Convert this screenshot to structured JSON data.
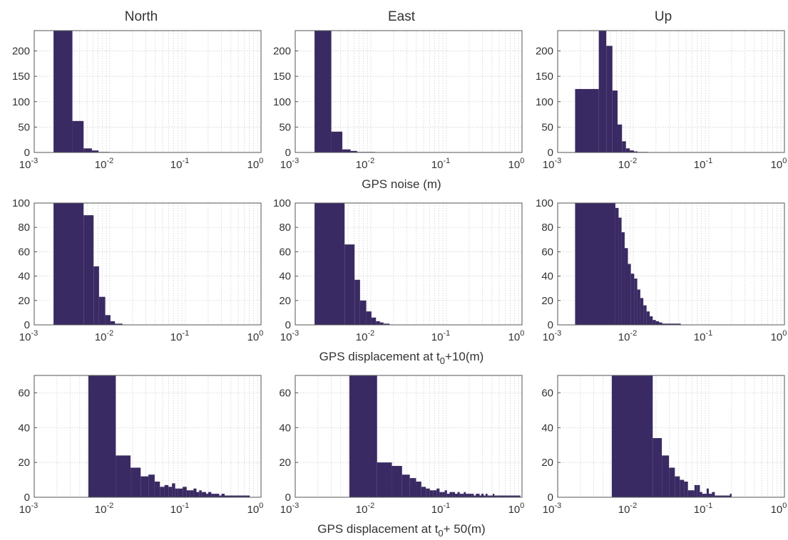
{
  "figure": {
    "column_titles": [
      "North",
      "East",
      "Up"
    ],
    "row_xlabels": [
      {
        "pre": "GPS noise (m)",
        "sub": "",
        "post": ""
      },
      {
        "pre": "GPS displacement at t",
        "sub": "0",
        "post": "+10(m)"
      },
      {
        "pre": "GPS displacement at t",
        "sub": "0",
        "post": "+ 50(m)"
      }
    ],
    "colors": {
      "bar": "#3a2a63",
      "frame": "#555555",
      "grid": "#c8c8c8"
    }
  },
  "chart_data": [
    {
      "type": "histogram",
      "row": 0,
      "col": 0,
      "title": "North",
      "xlabel": "",
      "ylabel": "",
      "xscale": "log",
      "xlim": [
        0.001,
        1
      ],
      "ylim": [
        0,
        240
      ],
      "yticks": [
        0,
        50,
        100,
        150,
        200
      ],
      "xtick_labels": [
        [
          "10",
          "-3"
        ],
        [
          "10",
          "-2"
        ],
        [
          "10",
          "-1"
        ],
        [
          "10",
          "0"
        ]
      ],
      "grid": true,
      "bin_edges": [
        0.0018,
        0.0032,
        0.0045,
        0.0058,
        0.0071,
        0.0085,
        0.0098
      ],
      "counts": [
        240,
        62,
        8,
        4,
        1,
        1
      ]
    },
    {
      "type": "histogram",
      "row": 0,
      "col": 1,
      "title": "East",
      "xlabel": "",
      "ylabel": "",
      "xscale": "log",
      "xlim": [
        0.001,
        1
      ],
      "ylim": [
        0,
        240
      ],
      "yticks": [
        0,
        50,
        100,
        150,
        200
      ],
      "xtick_labels": [
        [
          "10",
          "-3"
        ],
        [
          "10",
          "-2"
        ],
        [
          "10",
          "-1"
        ],
        [
          "10",
          "0"
        ]
      ],
      "grid": true,
      "bin_edges": [
        0.0018,
        0.003,
        0.0042,
        0.0054,
        0.0066,
        0.0078,
        0.009,
        0.0102,
        0.0114
      ],
      "counts": [
        240,
        41,
        6,
        3,
        1,
        1,
        1,
        1
      ]
    },
    {
      "type": "histogram",
      "row": 0,
      "col": 2,
      "title": "Up",
      "xlabel": "",
      "ylabel": "",
      "xscale": "log",
      "xlim": [
        0.001,
        1
      ],
      "ylim": [
        0,
        240
      ],
      "yticks": [
        0,
        50,
        100,
        150,
        200
      ],
      "xtick_labels": [
        [
          "10",
          "-3"
        ],
        [
          "10",
          "-2"
        ],
        [
          "10",
          "-1"
        ],
        [
          "10",
          "0"
        ]
      ],
      "grid": true,
      "bin_edges": [
        0.0017,
        0.0026,
        0.0035,
        0.0044,
        0.0053,
        0.0062,
        0.0071,
        0.008,
        0.009,
        0.0102,
        0.0114,
        0.0128,
        0.0142,
        0.0156
      ],
      "counts": [
        125,
        125,
        240,
        210,
        122,
        55,
        22,
        8,
        4,
        2,
        1,
        1,
        1
      ]
    },
    {
      "type": "histogram",
      "row": 1,
      "col": 0,
      "title": "",
      "xlabel": "",
      "ylabel": "",
      "xscale": "log",
      "xlim": [
        0.001,
        1
      ],
      "ylim": [
        0,
        100
      ],
      "yticks": [
        0,
        20,
        40,
        60,
        80,
        100
      ],
      "xtick_labels": [
        [
          "10",
          "-3"
        ],
        [
          "10",
          "-2"
        ],
        [
          "10",
          "-1"
        ],
        [
          "10",
          "0"
        ]
      ],
      "grid": true,
      "bin_edges": [
        0.0018,
        0.0045,
        0.0061,
        0.0072,
        0.0087,
        0.0102,
        0.0117,
        0.0132,
        0.0147
      ],
      "counts": [
        100,
        90,
        48,
        23,
        8,
        3,
        1,
        1
      ]
    },
    {
      "type": "histogram",
      "row": 1,
      "col": 1,
      "title": "",
      "xlabel": "",
      "ylabel": "",
      "xscale": "log",
      "xlim": [
        0.001,
        1
      ],
      "ylim": [
        0,
        100
      ],
      "yticks": [
        0,
        20,
        40,
        60,
        80,
        100
      ],
      "xtick_labels": [
        [
          "10",
          "-3"
        ],
        [
          "10",
          "-2"
        ],
        [
          "10",
          "-1"
        ],
        [
          "10",
          "0"
        ]
      ],
      "grid": true,
      "bin_edges": [
        0.0018,
        0.0045,
        0.0061,
        0.0072,
        0.0087,
        0.0102,
        0.0117,
        0.0132,
        0.0147,
        0.0162,
        0.0177
      ],
      "counts": [
        100,
        66,
        37,
        20,
        11,
        6,
        3,
        2,
        1,
        1
      ]
    },
    {
      "type": "histogram",
      "row": 1,
      "col": 2,
      "title": "",
      "xlabel": "",
      "ylabel": "",
      "xscale": "log",
      "xlim": [
        0.001,
        1
      ],
      "ylim": [
        0,
        100
      ],
      "yticks": [
        0,
        20,
        40,
        60,
        80,
        100
      ],
      "xtick_labels": [
        [
          "10",
          "-3"
        ],
        [
          "10",
          "-2"
        ],
        [
          "10",
          "-1"
        ],
        [
          "10",
          "0"
        ]
      ],
      "grid": true,
      "bin_edges": [
        0.0017,
        0.0058,
        0.0064,
        0.007,
        0.0077,
        0.0085,
        0.0093,
        0.0103,
        0.0113,
        0.0124,
        0.0136,
        0.015,
        0.0165,
        0.0181,
        0.0199,
        0.0219,
        0.0241,
        0.0265,
        0.0291,
        0.032,
        0.0352,
        0.0387,
        0.0425
      ],
      "counts": [
        100,
        96,
        88,
        76,
        63,
        50,
        42,
        38,
        29,
        22,
        16,
        11,
        7,
        4,
        3,
        2,
        1,
        1,
        1,
        1,
        1,
        1
      ]
    },
    {
      "type": "histogram",
      "row": 2,
      "col": 0,
      "title": "",
      "xlabel": "",
      "ylabel": "",
      "xscale": "log",
      "xlim": [
        0.001,
        1
      ],
      "ylim": [
        0,
        70
      ],
      "yticks": [
        0,
        20,
        40,
        60
      ],
      "xtick_labels": [
        [
          "10",
          "-3"
        ],
        [
          "10",
          "-2"
        ],
        [
          "10",
          "-1"
        ],
        [
          "10",
          "0"
        ]
      ],
      "grid": true,
      "bin_edges": [
        0.0052,
        0.012,
        0.0188,
        0.0256,
        0.0324,
        0.0392,
        0.046,
        0.0528,
        0.0596,
        0.0664,
        0.0732,
        0.08,
        0.092,
        0.104,
        0.116,
        0.128,
        0.14,
        0.152,
        0.164,
        0.176,
        0.188,
        0.2,
        0.22,
        0.24,
        0.26,
        0.28,
        0.3,
        0.33,
        0.36,
        0.39,
        0.42,
        0.45,
        0.49,
        0.53,
        0.57,
        0.61,
        0.66,
        0.71
      ],
      "counts": [
        70,
        24,
        17,
        12,
        13,
        9,
        6,
        7,
        6,
        8,
        5,
        5,
        6,
        4,
        4,
        5,
        3,
        4,
        3,
        3,
        2,
        3,
        2,
        2,
        2,
        1,
        2,
        1,
        1,
        1,
        1,
        1,
        1,
        1,
        1,
        1,
        1
      ]
    },
    {
      "type": "histogram",
      "row": 2,
      "col": 1,
      "title": "",
      "xlabel": "",
      "ylabel": "",
      "xscale": "log",
      "xlim": [
        0.001,
        1
      ],
      "ylim": [
        0,
        70
      ],
      "yticks": [
        0,
        20,
        40,
        60
      ],
      "xtick_labels": [
        [
          "10",
          "-3"
        ],
        [
          "10",
          "-2"
        ],
        [
          "10",
          "-1"
        ],
        [
          "10",
          "0"
        ]
      ],
      "grid": true,
      "bin_edges": [
        0.0052,
        0.0121,
        0.019,
        0.0259,
        0.0328,
        0.0397,
        0.0466,
        0.0535,
        0.0604,
        0.0673,
        0.0742,
        0.0811,
        0.088,
        0.0949,
        0.1018,
        0.11,
        0.12,
        0.13,
        0.14,
        0.15,
        0.16,
        0.17,
        0.18,
        0.19,
        0.2,
        0.215,
        0.23,
        0.245,
        0.26,
        0.275,
        0.29,
        0.31,
        0.33,
        0.35,
        0.37,
        0.39,
        0.41,
        0.43,
        0.45,
        0.47,
        0.49,
        0.52,
        0.55,
        0.58,
        0.61,
        0.64,
        0.67,
        0.7,
        0.74,
        0.78,
        0.82,
        0.86,
        0.9,
        0.95
      ],
      "counts": [
        70,
        20,
        18,
        13,
        11,
        9,
        6,
        5,
        4,
        4,
        5,
        3,
        3,
        4,
        2,
        3,
        3,
        2,
        3,
        2,
        2,
        3,
        2,
        2,
        2,
        2,
        1,
        2,
        2,
        1,
        2,
        1,
        2,
        1,
        1,
        1,
        2,
        1,
        1,
        1,
        1,
        1,
        1,
        1,
        1,
        1,
        1,
        1,
        1,
        1,
        1,
        1,
        1
      ]
    },
    {
      "type": "histogram",
      "row": 2,
      "col": 2,
      "title": "",
      "xlabel": "",
      "ylabel": "",
      "xscale": "log",
      "xlim": [
        0.001,
        1
      ],
      "ylim": [
        0,
        70
      ],
      "yticks": [
        0,
        20,
        40,
        60
      ],
      "xtick_labels": [
        [
          "10",
          "-3"
        ],
        [
          "10",
          "-2"
        ],
        [
          "10",
          "-1"
        ],
        [
          "10",
          "0"
        ]
      ],
      "grid": true,
      "bin_edges": [
        0.0052,
        0.0181,
        0.0239,
        0.0297,
        0.0355,
        0.0413,
        0.0471,
        0.0529,
        0.0587,
        0.0645,
        0.0703,
        0.0761,
        0.0819,
        0.0877,
        0.0935,
        0.1,
        0.11,
        0.12,
        0.13,
        0.14,
        0.15,
        0.16,
        0.17,
        0.18,
        0.19,
        0.2
      ],
      "counts": [
        70,
        34,
        24,
        17,
        12,
        10,
        9,
        4,
        4,
        7,
        7,
        3,
        2,
        2,
        5,
        2,
        3,
        1,
        1,
        1,
        1,
        1,
        1,
        1,
        2
      ]
    }
  ]
}
